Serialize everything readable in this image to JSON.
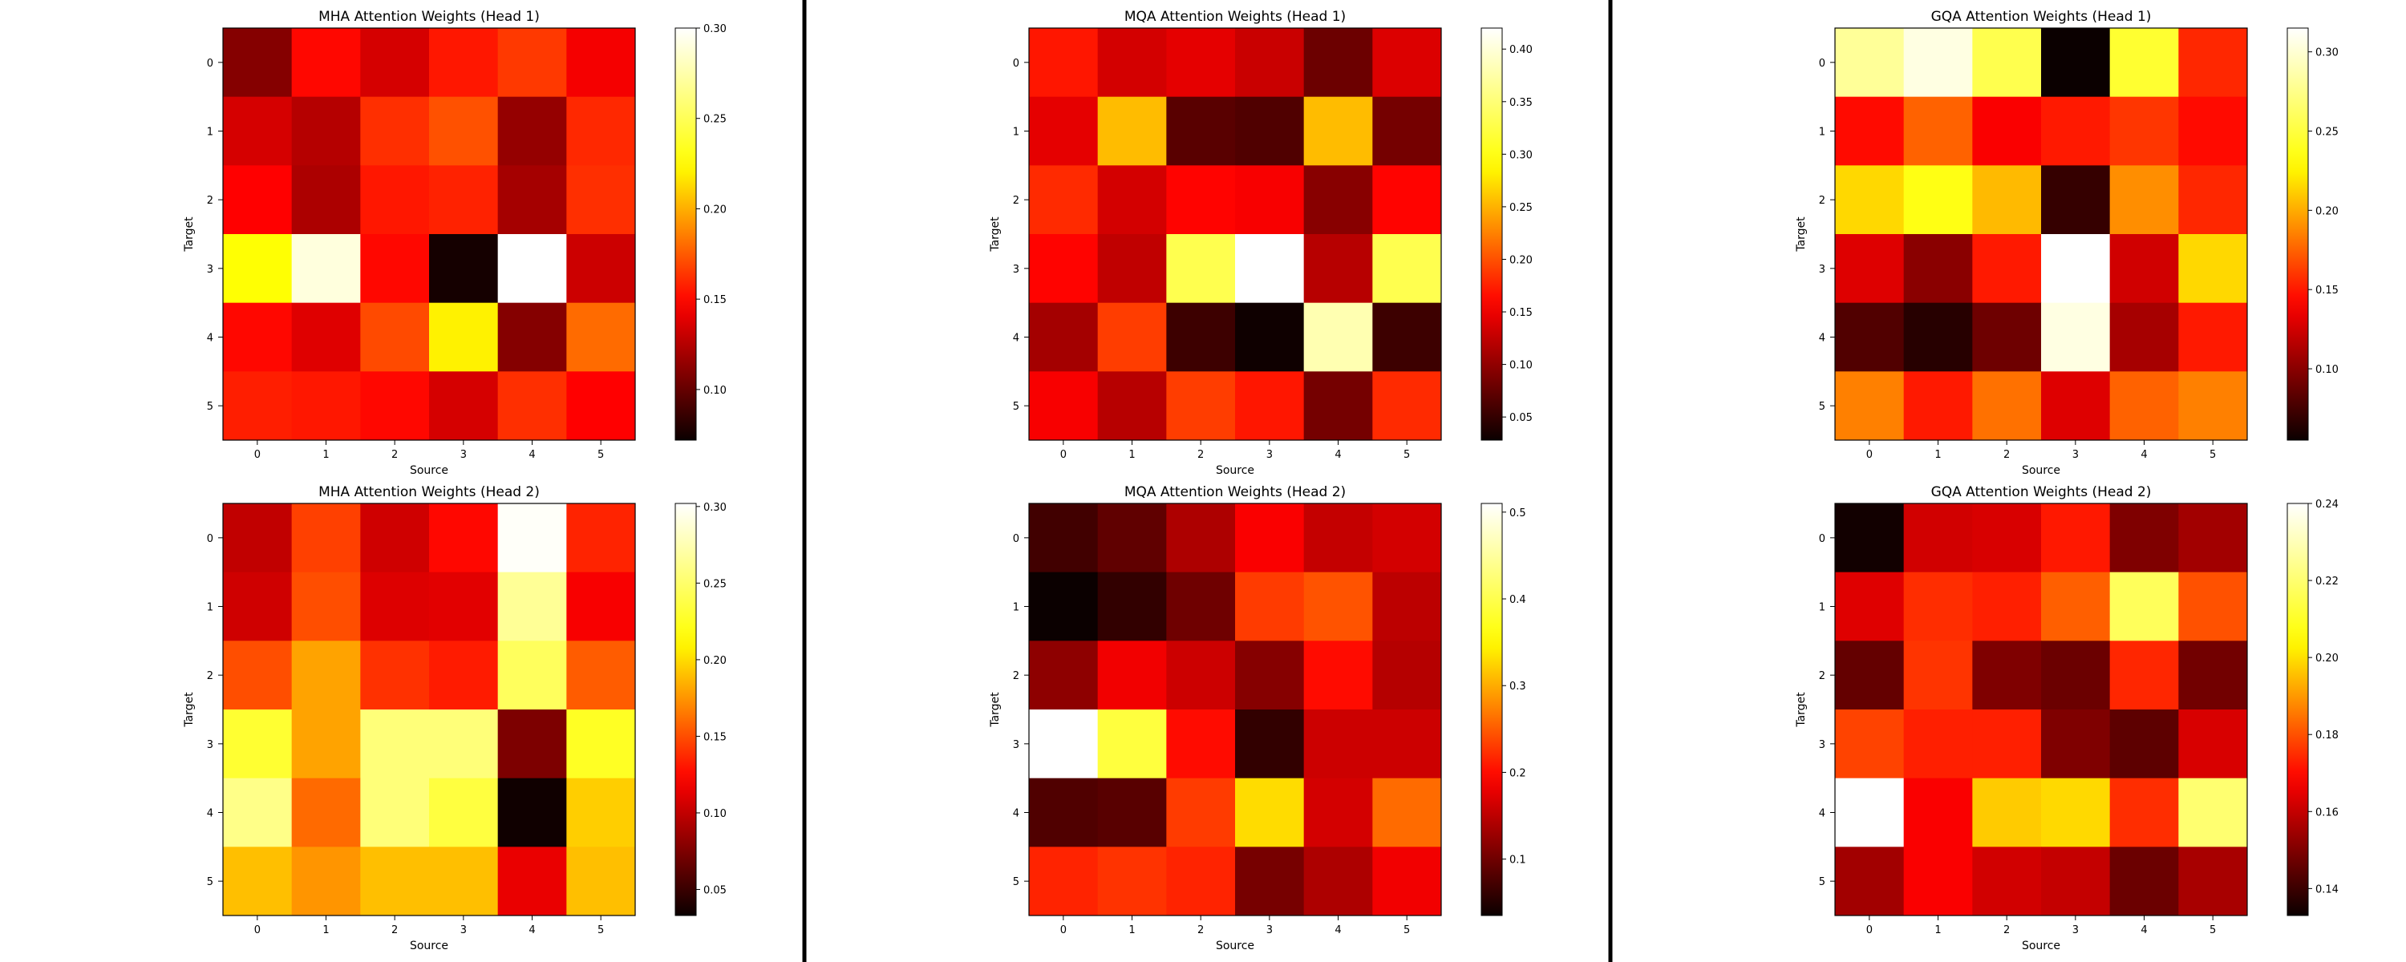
{
  "colormap": {
    "name": "hot",
    "stops": [
      "#0b0000",
      "#ff0000",
      "#ffff00",
      "#ffffff"
    ]
  },
  "separator_color": "#000000",
  "chart_data": [
    {
      "type": "heatmap",
      "title": "MHA Attention Weights (Head 1)",
      "xlabel": "Source",
      "ylabel": "Target",
      "x_categories": [
        "0",
        "1",
        "2",
        "3",
        "4",
        "5"
      ],
      "y_categories": [
        "0",
        "1",
        "2",
        "3",
        "4",
        "5"
      ],
      "values": [
        [
          0.11,
          0.15,
          0.135,
          0.155,
          0.165,
          0.145
        ],
        [
          0.135,
          0.125,
          0.162,
          0.172,
          0.115,
          0.16
        ],
        [
          0.148,
          0.122,
          0.155,
          0.158,
          0.12,
          0.162
        ],
        [
          0.225,
          0.29,
          0.15,
          0.075,
          0.3,
          0.132
        ],
        [
          0.15,
          0.138,
          0.17,
          0.22,
          0.11,
          0.18
        ],
        [
          0.157,
          0.155,
          0.15,
          0.135,
          0.162,
          0.148
        ]
      ],
      "zlim": [
        0.072,
        0.3
      ],
      "colorbar_ticks": [
        "0.10",
        "0.15",
        "0.20",
        "0.25",
        "0.30"
      ]
    },
    {
      "type": "heatmap",
      "title": "MQA Attention Weights (Head 1)",
      "xlabel": "Source",
      "ylabel": "Target",
      "x_categories": [
        "0",
        "1",
        "2",
        "3",
        "4",
        "5"
      ],
      "y_categories": [
        "0",
        "1",
        "2",
        "3",
        "4",
        "5"
      ],
      "values": [
        [
          0.17,
          0.135,
          0.145,
          0.13,
          0.08,
          0.14
        ],
        [
          0.145,
          0.255,
          0.07,
          0.065,
          0.255,
          0.085
        ],
        [
          0.18,
          0.135,
          0.16,
          0.155,
          0.095,
          0.16
        ],
        [
          0.16,
          0.125,
          0.33,
          0.42,
          0.12,
          0.33
        ],
        [
          0.11,
          0.19,
          0.055,
          0.03,
          0.38,
          0.055
        ],
        [
          0.155,
          0.12,
          0.19,
          0.17,
          0.085,
          0.18
        ]
      ],
      "zlim": [
        0.028,
        0.42
      ],
      "colorbar_ticks": [
        "0.05",
        "0.10",
        "0.15",
        "0.20",
        "0.25",
        "0.30",
        "0.35",
        "0.40"
      ]
    },
    {
      "type": "heatmap",
      "title": "GQA Attention Weights (Head 1)",
      "xlabel": "Source",
      "ylabel": "Target",
      "x_categories": [
        "0",
        "1",
        "2",
        "3",
        "4",
        "5"
      ],
      "y_categories": [
        "0",
        "1",
        "2",
        "3",
        "4",
        "5"
      ],
      "values": [
        [
          0.28,
          0.305,
          0.255,
          0.055,
          0.245,
          0.155
        ],
        [
          0.145,
          0.175,
          0.14,
          0.15,
          0.16,
          0.145
        ],
        [
          0.215,
          0.235,
          0.205,
          0.07,
          0.19,
          0.155
        ],
        [
          0.13,
          0.1,
          0.15,
          0.315,
          0.125,
          0.215
        ],
        [
          0.08,
          0.065,
          0.09,
          0.305,
          0.11,
          0.15
        ],
        [
          0.185,
          0.15,
          0.18,
          0.13,
          0.175,
          0.185
        ]
      ],
      "zlim": [
        0.055,
        0.315
      ],
      "colorbar_ticks": [
        "0.10",
        "0.15",
        "0.20",
        "0.25",
        "0.30"
      ]
    },
    {
      "type": "heatmap",
      "title": "MHA Attention Weights (Head 2)",
      "xlabel": "Source",
      "ylabel": "Target",
      "x_categories": [
        "0",
        "1",
        "2",
        "3",
        "4",
        "5"
      ],
      "y_categories": [
        "0",
        "1",
        "2",
        "3",
        "4",
        "5"
      ],
      "values": [
        [
          0.1,
          0.145,
          0.105,
          0.125,
          0.3,
          0.135
        ],
        [
          0.105,
          0.15,
          0.11,
          0.112,
          0.265,
          0.12
        ],
        [
          0.15,
          0.18,
          0.14,
          0.132,
          0.245,
          0.155
        ],
        [
          0.23,
          0.18,
          0.255,
          0.255,
          0.075,
          0.225
        ],
        [
          0.26,
          0.16,
          0.255,
          0.235,
          0.035,
          0.195
        ],
        [
          0.19,
          0.175,
          0.19,
          0.19,
          0.115,
          0.19
        ]
      ],
      "zlim": [
        0.033,
        0.302
      ],
      "colorbar_ticks": [
        "0.05",
        "0.10",
        "0.15",
        "0.20",
        "0.25",
        "0.30"
      ]
    },
    {
      "type": "heatmap",
      "title": "MQA Attention Weights (Head 2)",
      "xlabel": "Source",
      "ylabel": "Target",
      "x_categories": [
        "0",
        "1",
        "2",
        "3",
        "4",
        "5"
      ],
      "y_categories": [
        "0",
        "1",
        "2",
        "3",
        "4",
        "5"
      ],
      "values": [
        [
          0.07,
          0.09,
          0.14,
          0.19,
          0.155,
          0.165
        ],
        [
          0.035,
          0.06,
          0.1,
          0.23,
          0.245,
          0.15
        ],
        [
          0.12,
          0.185,
          0.16,
          0.115,
          0.2,
          0.145
        ],
        [
          0.51,
          0.39,
          0.2,
          0.06,
          0.16,
          0.16
        ],
        [
          0.08,
          0.085,
          0.23,
          0.33,
          0.165,
          0.26
        ],
        [
          0.215,
          0.225,
          0.215,
          0.105,
          0.14,
          0.185
        ]
      ],
      "zlim": [
        0.035,
        0.51
      ],
      "colorbar_ticks": [
        "0.1",
        "0.2",
        "0.3",
        "0.4",
        "0.5"
      ]
    },
    {
      "type": "heatmap",
      "title": "GQA Attention Weights (Head 2)",
      "xlabel": "Source",
      "ylabel": "Target",
      "x_categories": [
        "0",
        "1",
        "2",
        "3",
        "4",
        "5"
      ],
      "y_categories": [
        "0",
        "1",
        "2",
        "3",
        "4",
        "5"
      ],
      "values": [
        [
          0.134,
          0.162,
          0.163,
          0.172,
          0.15,
          0.155
        ],
        [
          0.164,
          0.175,
          0.173,
          0.182,
          0.217,
          0.18
        ],
        [
          0.146,
          0.176,
          0.15,
          0.147,
          0.174,
          0.148
        ],
        [
          0.178,
          0.173,
          0.173,
          0.15,
          0.145,
          0.163
        ],
        [
          0.24,
          0.168,
          0.197,
          0.199,
          0.175,
          0.22
        ],
        [
          0.155,
          0.168,
          0.162,
          0.16,
          0.147,
          0.156
        ]
      ],
      "zlim": [
        0.133,
        0.24
      ],
      "colorbar_ticks": [
        "0.14",
        "0.16",
        "0.18",
        "0.20",
        "0.22",
        "0.24"
      ]
    }
  ]
}
